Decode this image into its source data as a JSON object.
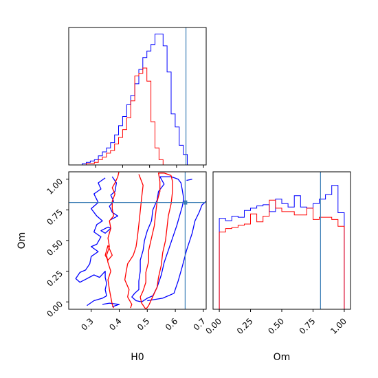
{
  "chart_data": {
    "type": "corner",
    "parameters": [
      "H0",
      "Om"
    ],
    "truths": {
      "H0": 0.635,
      "Om": 0.81
    },
    "series_colors": {
      "blue": "#0000ff",
      "red": "#ff0000",
      "truth": "#3a7db5"
    },
    "panels": [
      {
        "id": "h0-marginal",
        "type": "step-histogram",
        "xlim": [
          0.2,
          0.71
        ],
        "ylim": [
          0,
          1.05
        ],
        "x_ticks": [
          0.3,
          0.4,
          0.5,
          0.6,
          0.7
        ],
        "bin_edges": [
          0.22,
          0.235,
          0.25,
          0.265,
          0.28,
          0.295,
          0.31,
          0.325,
          0.34,
          0.355,
          0.37,
          0.385,
          0.4,
          0.415,
          0.43,
          0.445,
          0.46,
          0.475,
          0.49,
          0.505,
          0.52,
          0.535,
          0.55,
          0.565,
          0.58,
          0.595,
          0.61,
          0.625,
          0.64,
          0.655,
          0.67,
          0.685,
          0.7
        ],
        "series": [
          {
            "name": "blue",
            "values": [
              0,
              0,
              0.01,
              0.02,
              0.03,
              0.04,
              0.07,
              0.1,
              0.13,
              0.17,
              0.23,
              0.3,
              0.37,
              0.46,
              0.53,
              0.62,
              0.73,
              0.82,
              0.87,
              0.92,
              1.0,
              1.0,
              0.91,
              0.71,
              0.39,
              0.29,
              0.15,
              0.08,
              0,
              0,
              0,
              0
            ]
          },
          {
            "name": "red",
            "values": [
              0,
              0,
              0,
              0.01,
              0.01,
              0.02,
              0.04,
              0.06,
              0.09,
              0.11,
              0.16,
              0.21,
              0.27,
              0.36,
              0.49,
              0.68,
              0.7,
              0.74,
              0.64,
              0.33,
              0.13,
              0.04,
              0,
              0,
              0,
              0,
              0,
              0,
              0,
              0,
              0,
              0
            ]
          }
        ]
      },
      {
        "id": "om-marginal",
        "type": "step-histogram",
        "xlim": [
          -0.05,
          1.05
        ],
        "ylim": [
          0,
          1.21
        ],
        "x_ticks": [
          0.0,
          0.25,
          0.5,
          0.75,
          1.0
        ],
        "x_tick_labels": [
          "0.00",
          "0.25",
          "0.50",
          "0.75",
          "1.00"
        ],
        "bin_edges": [
          0.0,
          0.05,
          0.1,
          0.15,
          0.2,
          0.25,
          0.3,
          0.35,
          0.4,
          0.45,
          0.5,
          0.55,
          0.6,
          0.65,
          0.7,
          0.75,
          0.8,
          0.85,
          0.9,
          0.95,
          1.0
        ],
        "series": [
          {
            "name": "blue",
            "values": [
              0.8,
              0.78,
              0.82,
              0.81,
              0.87,
              0.89,
              0.91,
              0.92,
              0.86,
              0.97,
              0.93,
              0.9,
              1.0,
              0.9,
              0.89,
              0.93,
              0.97,
              1.01,
              1.09,
              0.85
            ]
          },
          {
            "name": "red",
            "values": [
              0.68,
              0.71,
              0.72,
              0.74,
              0.75,
              0.84,
              0.77,
              0.82,
              0.96,
              0.89,
              0.86,
              0.86,
              0.83,
              0.83,
              0.89,
              0.79,
              0.81,
              0.81,
              0.79,
              0.73
            ]
          }
        ]
      },
      {
        "id": "h0-om-2d",
        "type": "contour",
        "xlim": [
          0.22,
          0.71
        ],
        "ylim": [
          -0.06,
          1.06
        ],
        "x_ticks": [
          0.3,
          0.4,
          0.5,
          0.6,
          0.7
        ],
        "y_ticks": [
          0.0,
          0.25,
          0.5,
          0.75,
          1.0
        ],
        "y_tick_labels": [
          "0.00",
          "0.25",
          "0.50",
          "0.75",
          "1.00"
        ],
        "contours": [
          {
            "series": "blue",
            "points": [
              [
                0.35,
                1.01
              ],
              [
                0.325,
                0.97
              ],
              [
                0.335,
                0.92
              ],
              [
                0.31,
                0.88
              ],
              [
                0.325,
                0.81
              ],
              [
                0.3,
                0.76
              ],
              [
                0.32,
                0.7
              ],
              [
                0.34,
                0.66
              ],
              [
                0.32,
                0.63
              ],
              [
                0.31,
                0.57
              ],
              [
                0.335,
                0.53
              ],
              [
                0.32,
                0.47
              ],
              [
                0.3,
                0.45
              ],
              [
                0.325,
                0.41
              ],
              [
                0.3,
                0.37
              ],
              [
                0.295,
                0.31
              ],
              [
                0.28,
                0.26
              ],
              [
                0.26,
                0.24
              ],
              [
                0.245,
                0.19
              ],
              [
                0.26,
                0.16
              ],
              [
                0.285,
                0.19
              ],
              [
                0.31,
                0.22
              ],
              [
                0.33,
                0.2
              ],
              [
                0.35,
                0.25
              ],
              [
                0.35,
                0.2
              ],
              [
                0.355,
                0.15
              ],
              [
                0.35,
                0.1
              ],
              [
                0.355,
                0.05
              ],
              [
                0.34,
                0.03
              ],
              [
                0.31,
                0.01
              ],
              [
                0.285,
                -0.03
              ]
            ]
          },
          {
            "series": "blue",
            "points": [
              [
                0.375,
                1.02
              ],
              [
                0.39,
                0.97
              ],
              [
                0.385,
                0.9
              ],
              [
                0.37,
                0.87
              ],
              [
                0.38,
                0.82
              ],
              [
                0.365,
                0.78
              ],
              [
                0.375,
                0.73
              ],
              [
                0.395,
                0.7
              ],
              [
                0.37,
                0.67
              ]
            ]
          },
          {
            "series": "blue",
            "points": [
              [
                0.34,
                -0.02
              ],
              [
                0.365,
                -0.01
              ],
              [
                0.4,
                -0.02
              ],
              [
                0.375,
                -0.04
              ]
            ]
          },
          {
            "series": "blue",
            "points": [
              [
                0.37,
                0.6
              ],
              [
                0.35,
                0.56
              ],
              [
                0.335,
                0.58
              ],
              [
                0.36,
                0.61
              ],
              [
                0.37,
                0.6
              ]
            ]
          },
          {
            "series": "blue",
            "points": [
              [
                0.545,
                1.02
              ],
              [
                0.56,
                0.96
              ],
              [
                0.54,
                0.9
              ],
              [
                0.535,
                0.83
              ],
              [
                0.52,
                0.75
              ],
              [
                0.515,
                0.66
              ],
              [
                0.5,
                0.58
              ],
              [
                0.49,
                0.5
              ],
              [
                0.485,
                0.42
              ],
              [
                0.475,
                0.34
              ],
              [
                0.475,
                0.25
              ],
              [
                0.47,
                0.17
              ],
              [
                0.47,
                0.1
              ],
              [
                0.455,
                0.07
              ],
              [
                0.445,
                0.04
              ],
              [
                0.46,
                0.01
              ],
              [
                0.48,
                0.0
              ],
              [
                0.5,
                0.03
              ],
              [
                0.52,
                0.05
              ],
              [
                0.535,
                0.12
              ],
              [
                0.55,
                0.22
              ],
              [
                0.56,
                0.32
              ],
              [
                0.575,
                0.42
              ],
              [
                0.59,
                0.52
              ],
              [
                0.605,
                0.62
              ],
              [
                0.615,
                0.7
              ],
              [
                0.625,
                0.78
              ],
              [
                0.63,
                0.84
              ],
              [
                0.625,
                0.91
              ],
              [
                0.62,
                0.97
              ],
              [
                0.61,
                1.0
              ],
              [
                0.585,
                1.02
              ],
              [
                0.56,
                1.02
              ],
              [
                0.545,
                1.02
              ]
            ]
          },
          {
            "series": "blue",
            "points": [
              [
                0.5,
                0.01
              ],
              [
                0.555,
                0.03
              ],
              [
                0.595,
                0.07
              ],
              [
                0.61,
                0.17
              ],
              [
                0.625,
                0.29
              ],
              [
                0.64,
                0.42
              ],
              [
                0.66,
                0.56
              ],
              [
                0.67,
                0.66
              ],
              [
                0.685,
                0.73
              ],
              [
                0.695,
                0.79
              ],
              [
                0.71,
                0.82
              ]
            ]
          },
          {
            "series": "blue",
            "points": [
              [
                0.64,
                0.99
              ],
              [
                0.66,
                1.0
              ]
            ]
          },
          {
            "series": "red",
            "points": [
              [
                0.4,
                1.07
              ],
              [
                0.395,
                1.02
              ],
              [
                0.385,
                0.97
              ],
              [
                0.375,
                0.93
              ],
              [
                0.385,
                0.88
              ],
              [
                0.375,
                0.82
              ],
              [
                0.375,
                0.76
              ],
              [
                0.38,
                0.7
              ],
              [
                0.365,
                0.66
              ],
              [
                0.37,
                0.6
              ],
              [
                0.36,
                0.52
              ],
              [
                0.365,
                0.45
              ],
              [
                0.355,
                0.38
              ],
              [
                0.36,
                0.32
              ],
              [
                0.37,
                0.25
              ],
              [
                0.36,
                0.18
              ],
              [
                0.365,
                0.1
              ],
              [
                0.37,
                0.04
              ],
              [
                0.375,
                -0.02
              ],
              [
                0.38,
                -0.05
              ]
            ]
          },
          {
            "series": "red",
            "points": [
              [
                0.36,
                0.46
              ],
              [
                0.375,
                0.38
              ],
              [
                0.36,
                0.34
              ],
              [
                0.35,
                0.38
              ],
              [
                0.36,
                0.46
              ]
            ]
          },
          {
            "series": "red",
            "points": [
              [
                0.585,
                1.03
              ],
              [
                0.56,
                1.05
              ],
              [
                0.54,
                1.05
              ],
              [
                0.545,
                0.98
              ],
              [
                0.545,
                0.9
              ],
              [
                0.535,
                0.82
              ],
              [
                0.53,
                0.72
              ],
              [
                0.525,
                0.62
              ],
              [
                0.515,
                0.52
              ],
              [
                0.505,
                0.42
              ],
              [
                0.505,
                0.33
              ],
              [
                0.495,
                0.24
              ],
              [
                0.495,
                0.16
              ],
              [
                0.485,
                0.09
              ],
              [
                0.475,
                0.04
              ],
              [
                0.48,
                -0.01
              ],
              [
                0.495,
                -0.06
              ],
              [
                0.505,
                -0.03
              ],
              [
                0.515,
                0.02
              ],
              [
                0.525,
                0.07
              ],
              [
                0.535,
                0.12
              ],
              [
                0.54,
                0.2
              ],
              [
                0.55,
                0.3
              ],
              [
                0.555,
                0.4
              ],
              [
                0.565,
                0.5
              ],
              [
                0.57,
                0.6
              ],
              [
                0.575,
                0.7
              ],
              [
                0.585,
                0.8
              ],
              [
                0.59,
                0.9
              ],
              [
                0.59,
                0.98
              ],
              [
                0.585,
                1.03
              ]
            ]
          },
          {
            "series": "red",
            "points": [
              [
                0.47,
                1.04
              ],
              [
                0.485,
                0.95
              ],
              [
                0.48,
                0.85
              ],
              [
                0.475,
                0.74
              ],
              [
                0.47,
                0.63
              ],
              [
                0.465,
                0.53
              ],
              [
                0.46,
                0.45
              ],
              [
                0.45,
                0.38
              ],
              [
                0.43,
                0.31
              ],
              [
                0.425,
                0.25
              ],
              [
                0.42,
                0.18
              ],
              [
                0.435,
                0.1
              ],
              [
                0.43,
                0.04
              ],
              [
                0.445,
                -0.02
              ],
              [
                0.44,
                -0.05
              ]
            ]
          }
        ]
      }
    ],
    "xlabel": "H0",
    "ylabel": "Om",
    "om_xlabel": "Om",
    "grid": false,
    "legend": "none"
  }
}
